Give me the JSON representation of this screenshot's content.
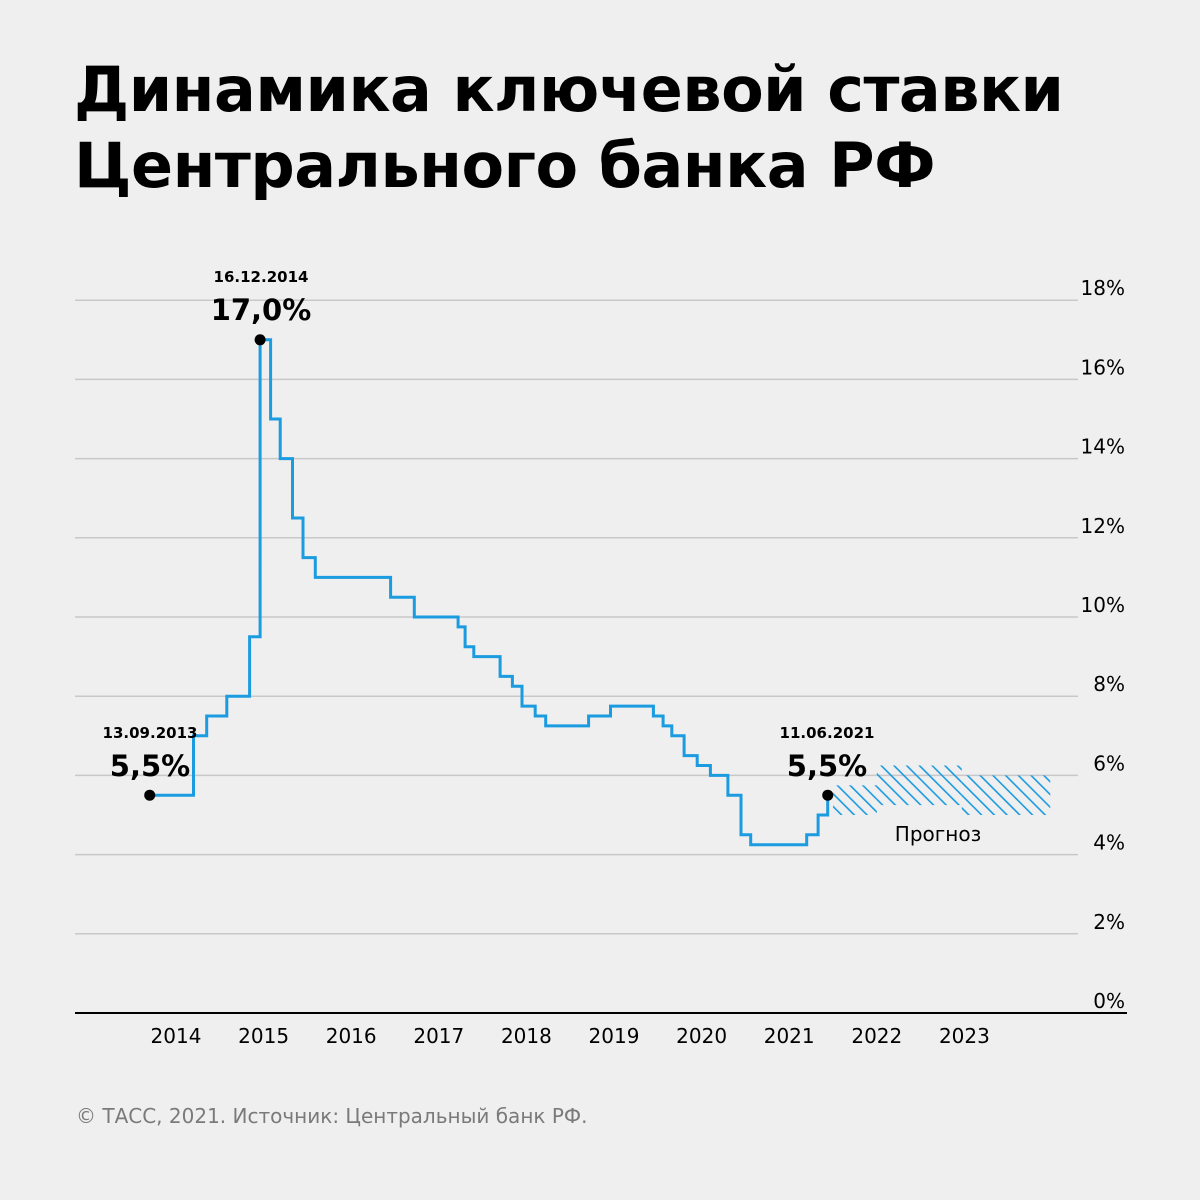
{
  "title_lines": [
    "Динамика ключевой ставки",
    "Центрального банка РФ"
  ],
  "footer": "© ТАСС, 2021. Источник: Центральный банк РФ.",
  "colors": {
    "line": "#1b9be0",
    "forecast": "#1b9be0",
    "grid": "#c8c8c8"
  },
  "chart_data": {
    "type": "line",
    "title": "Динамика ключевой ставки Центрального банка РФ",
    "xlabel": "",
    "ylabel": "",
    "x_range": [
      2013.0,
      2024.0
    ],
    "ylim": [
      0,
      18
    ],
    "y_ticks": [
      0,
      2,
      4,
      6,
      8,
      10,
      12,
      14,
      16,
      18
    ],
    "y_tick_labels": [
      "0%",
      "2%",
      "4%",
      "6%",
      "8%",
      "10%",
      "12%",
      "14%",
      "16%",
      "18%"
    ],
    "x_ticks": [
      2014,
      2015,
      2016,
      2017,
      2018,
      2019,
      2020,
      2021,
      2022,
      2023
    ],
    "x_tick_labels": [
      "2014",
      "2015",
      "2016",
      "2017",
      "2018",
      "2019",
      "2020",
      "2021",
      "2022",
      "2023"
    ],
    "grid": true,
    "series": [
      {
        "x": [
          2013.7,
          2014.2,
          2014.2,
          2014.35,
          2014.35,
          2014.58,
          2014.58,
          2014.84,
          2014.84,
          2014.96,
          2014.96,
          2015.08,
          2015.08,
          2015.19,
          2015.19,
          2015.33,
          2015.33,
          2015.45,
          2015.45,
          2015.59,
          2015.59,
          2016.45,
          2016.45,
          2016.72,
          2016.72,
          2017.22,
          2017.22,
          2017.3,
          2017.3,
          2017.4,
          2017.4,
          2017.7,
          2017.7,
          2017.84,
          2017.84,
          2017.95,
          2017.95,
          2018.1,
          2018.1,
          2018.22,
          2018.22,
          2018.71,
          2018.71,
          2018.96,
          2018.96,
          2019.45,
          2019.45,
          2019.56,
          2019.56,
          2019.66,
          2019.66,
          2019.8,
          2019.8,
          2019.95,
          2019.95,
          2020.1,
          2020.1,
          2020.3,
          2020.3,
          2020.45,
          2020.45,
          2020.56,
          2020.56,
          2021.2,
          2021.2,
          2021.33,
          2021.33,
          2021.44,
          2021.44,
          2021.5
        ],
        "y": [
          5.5,
          5.5,
          7.0,
          7.0,
          7.5,
          7.5,
          8.0,
          8.0,
          9.5,
          9.5,
          17.0,
          17.0,
          15.0,
          15.0,
          14.0,
          14.0,
          12.5,
          12.5,
          11.5,
          11.5,
          11.0,
          11.0,
          10.5,
          10.5,
          10.0,
          10.0,
          9.75,
          9.75,
          9.25,
          9.25,
          9.0,
          9.0,
          8.5,
          8.5,
          8.25,
          8.25,
          7.75,
          7.75,
          7.5,
          7.5,
          7.25,
          7.25,
          7.5,
          7.5,
          7.75,
          7.75,
          7.5,
          7.5,
          7.25,
          7.25,
          7.0,
          7.0,
          6.5,
          6.5,
          6.25,
          6.25,
          6.0,
          6.0,
          5.5,
          5.5,
          4.5,
          4.5,
          4.25,
          4.25,
          4.5,
          4.5,
          5.0,
          5.0,
          5.5,
          5.5
        ]
      }
    ],
    "forecast": {
      "label": "Прогноз",
      "bands": [
        {
          "x_start": 2021.5,
          "x_end": 2022.0,
          "low": 5.0,
          "high": 5.75
        },
        {
          "x_start": 2022.0,
          "x_end": 2022.97,
          "low": 5.25,
          "high": 6.25
        },
        {
          "x_start": 2022.97,
          "x_end": 2023.98,
          "low": 5.0,
          "high": 6.0
        }
      ]
    },
    "annotations": [
      {
        "date": "13.09.2013",
        "value": "5,5%",
        "x": 2013.7,
        "y": 5.5
      },
      {
        "date": "16.12.2014",
        "value": "17,0%",
        "x": 2014.96,
        "y": 17.0
      },
      {
        "date": "11.06.2021",
        "value": "5,5%",
        "x": 2021.44,
        "y": 5.5
      }
    ]
  }
}
